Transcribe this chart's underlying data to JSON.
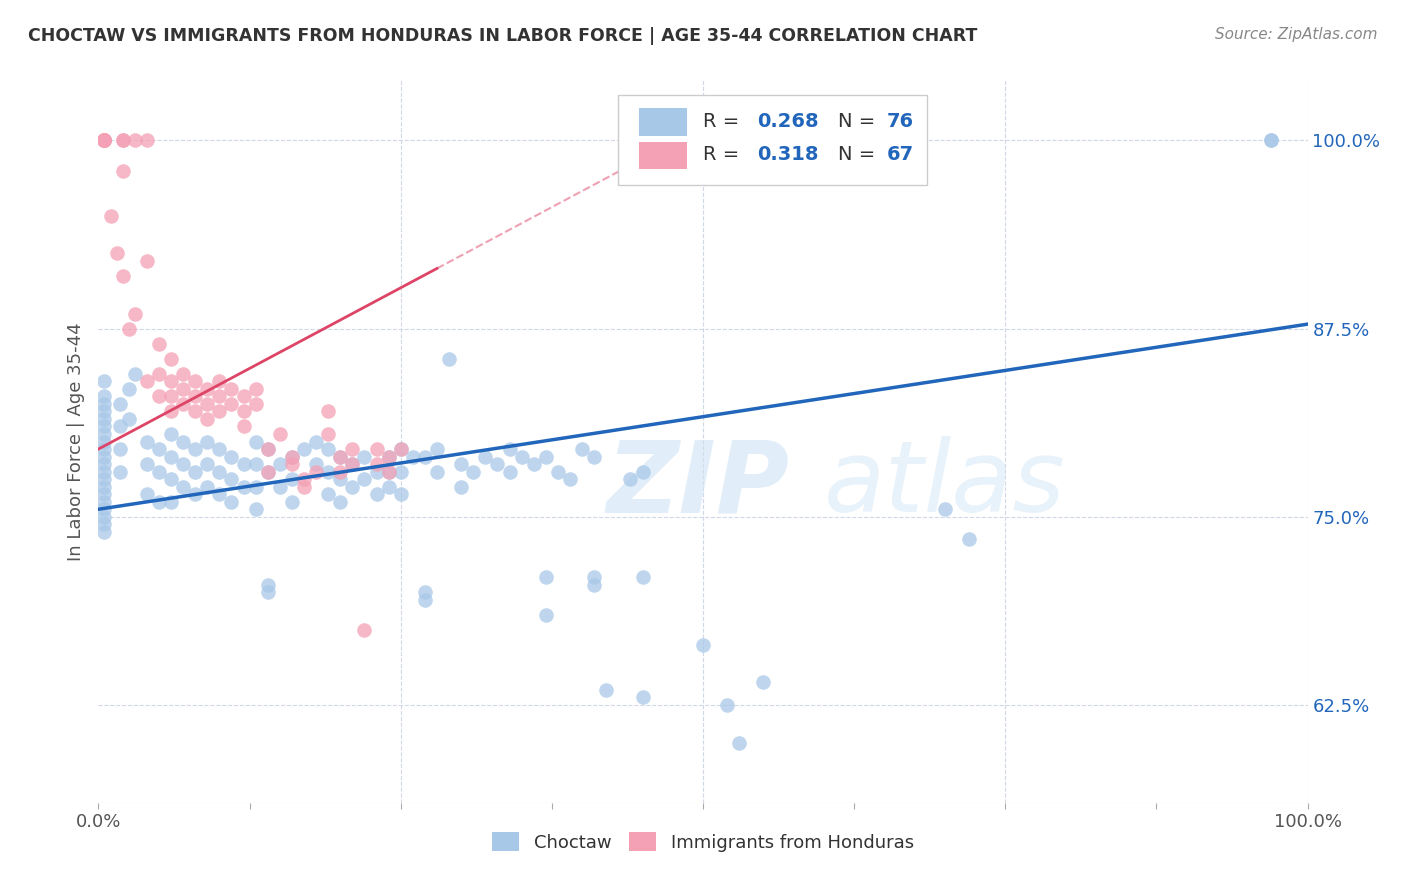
{
  "title": "CHOCTAW VS IMMIGRANTS FROM HONDURAS IN LABOR FORCE | AGE 35-44 CORRELATION CHART",
  "source": "Source: ZipAtlas.com",
  "ylabel": "In Labor Force | Age 35-44",
  "yticks": [
    62.5,
    75.0,
    87.5,
    100.0
  ],
  "ytick_labels": [
    "62.5%",
    "75.0%",
    "87.5%",
    "100.0%"
  ],
  "xmin": 0.0,
  "xmax": 1.0,
  "ymin": 56.0,
  "ymax": 104.0,
  "blue_color": "#a8c8e8",
  "pink_color": "#f4a0b5",
  "blue_line_color": "#2266bb",
  "pink_line_color": "#dd4466",
  "watermark_zip": "ZIP",
  "watermark_atlas": "atlas",
  "blue_trend_x0": 0.0,
  "blue_trend_y0": 75.5,
  "blue_trend_x1": 1.0,
  "blue_trend_y1": 87.8,
  "pink_trend_x0": 0.0,
  "pink_trend_y0": 79.5,
  "pink_trend_x1": 0.28,
  "pink_trend_y1": 91.5,
  "blue_scatter": [
    [
      0.005,
      84.0
    ],
    [
      0.005,
      83.0
    ],
    [
      0.005,
      82.5
    ],
    [
      0.005,
      82.0
    ],
    [
      0.005,
      81.5
    ],
    [
      0.005,
      81.0
    ],
    [
      0.005,
      80.5
    ],
    [
      0.005,
      80.0
    ],
    [
      0.005,
      79.5
    ],
    [
      0.005,
      79.0
    ],
    [
      0.005,
      78.5
    ],
    [
      0.005,
      78.0
    ],
    [
      0.005,
      77.5
    ],
    [
      0.005,
      77.0
    ],
    [
      0.005,
      76.5
    ],
    [
      0.005,
      76.0
    ],
    [
      0.005,
      75.5
    ],
    [
      0.005,
      75.0
    ],
    [
      0.005,
      74.5
    ],
    [
      0.005,
      74.0
    ],
    [
      0.018,
      82.5
    ],
    [
      0.018,
      81.0
    ],
    [
      0.018,
      79.5
    ],
    [
      0.018,
      78.0
    ],
    [
      0.025,
      83.5
    ],
    [
      0.025,
      81.5
    ],
    [
      0.03,
      84.5
    ],
    [
      0.04,
      80.0
    ],
    [
      0.04,
      78.5
    ],
    [
      0.04,
      76.5
    ],
    [
      0.05,
      79.5
    ],
    [
      0.05,
      78.0
    ],
    [
      0.05,
      76.0
    ],
    [
      0.06,
      80.5
    ],
    [
      0.06,
      79.0
    ],
    [
      0.06,
      77.5
    ],
    [
      0.06,
      76.0
    ],
    [
      0.07,
      80.0
    ],
    [
      0.07,
      78.5
    ],
    [
      0.07,
      77.0
    ],
    [
      0.08,
      79.5
    ],
    [
      0.08,
      78.0
    ],
    [
      0.08,
      76.5
    ],
    [
      0.09,
      80.0
    ],
    [
      0.09,
      78.5
    ],
    [
      0.09,
      77.0
    ],
    [
      0.1,
      79.5
    ],
    [
      0.1,
      78.0
    ],
    [
      0.1,
      76.5
    ],
    [
      0.11,
      79.0
    ],
    [
      0.11,
      77.5
    ],
    [
      0.11,
      76.0
    ],
    [
      0.12,
      78.5
    ],
    [
      0.12,
      77.0
    ],
    [
      0.13,
      80.0
    ],
    [
      0.13,
      78.5
    ],
    [
      0.13,
      77.0
    ],
    [
      0.13,
      75.5
    ],
    [
      0.14,
      79.5
    ],
    [
      0.14,
      78.0
    ],
    [
      0.14,
      70.5
    ],
    [
      0.14,
      70.0
    ],
    [
      0.15,
      78.5
    ],
    [
      0.15,
      77.0
    ],
    [
      0.16,
      79.0
    ],
    [
      0.16,
      77.5
    ],
    [
      0.16,
      76.0
    ],
    [
      0.17,
      79.5
    ],
    [
      0.18,
      80.0
    ],
    [
      0.18,
      78.5
    ],
    [
      0.19,
      79.5
    ],
    [
      0.19,
      78.0
    ],
    [
      0.19,
      76.5
    ],
    [
      0.2,
      79.0
    ],
    [
      0.2,
      77.5
    ],
    [
      0.2,
      76.0
    ],
    [
      0.21,
      78.5
    ],
    [
      0.21,
      77.0
    ],
    [
      0.22,
      79.0
    ],
    [
      0.22,
      77.5
    ],
    [
      0.23,
      78.0
    ],
    [
      0.23,
      76.5
    ],
    [
      0.24,
      79.0
    ],
    [
      0.24,
      78.0
    ],
    [
      0.24,
      77.0
    ],
    [
      0.25,
      79.5
    ],
    [
      0.25,
      78.0
    ],
    [
      0.25,
      76.5
    ],
    [
      0.26,
      79.0
    ],
    [
      0.27,
      79.0
    ],
    [
      0.27,
      70.0
    ],
    [
      0.27,
      69.5
    ],
    [
      0.28,
      79.5
    ],
    [
      0.28,
      78.0
    ],
    [
      0.29,
      85.5
    ],
    [
      0.3,
      78.5
    ],
    [
      0.3,
      77.0
    ],
    [
      0.31,
      78.0
    ],
    [
      0.32,
      79.0
    ],
    [
      0.33,
      78.5
    ],
    [
      0.34,
      79.5
    ],
    [
      0.34,
      78.0
    ],
    [
      0.35,
      79.0
    ],
    [
      0.36,
      78.5
    ],
    [
      0.37,
      79.0
    ],
    [
      0.37,
      71.0
    ],
    [
      0.37,
      68.5
    ],
    [
      0.38,
      78.0
    ],
    [
      0.39,
      77.5
    ],
    [
      0.4,
      79.5
    ],
    [
      0.41,
      79.0
    ],
    [
      0.41,
      71.0
    ],
    [
      0.41,
      70.5
    ],
    [
      0.42,
      63.5
    ],
    [
      0.44,
      77.5
    ],
    [
      0.45,
      78.0
    ],
    [
      0.45,
      71.0
    ],
    [
      0.45,
      63.0
    ],
    [
      0.5,
      66.5
    ],
    [
      0.52,
      62.5
    ],
    [
      0.53,
      60.0
    ],
    [
      0.55,
      64.0
    ],
    [
      0.7,
      75.5
    ],
    [
      0.72,
      73.5
    ],
    [
      0.97,
      100.0
    ],
    [
      0.97,
      100.0
    ]
  ],
  "pink_scatter": [
    [
      0.005,
      100.0
    ],
    [
      0.005,
      100.0
    ],
    [
      0.005,
      100.0
    ],
    [
      0.005,
      100.0
    ],
    [
      0.005,
      100.0
    ],
    [
      0.005,
      100.0
    ],
    [
      0.005,
      100.0
    ],
    [
      0.005,
      100.0
    ],
    [
      0.01,
      95.0
    ],
    [
      0.015,
      92.5
    ],
    [
      0.02,
      100.0
    ],
    [
      0.02,
      100.0
    ],
    [
      0.02,
      98.0
    ],
    [
      0.02,
      91.0
    ],
    [
      0.025,
      87.5
    ],
    [
      0.03,
      100.0
    ],
    [
      0.03,
      88.5
    ],
    [
      0.04,
      100.0
    ],
    [
      0.04,
      92.0
    ],
    [
      0.04,
      84.0
    ],
    [
      0.05,
      86.5
    ],
    [
      0.05,
      84.5
    ],
    [
      0.05,
      83.0
    ],
    [
      0.06,
      85.5
    ],
    [
      0.06,
      84.0
    ],
    [
      0.06,
      83.0
    ],
    [
      0.06,
      82.0
    ],
    [
      0.07,
      84.5
    ],
    [
      0.07,
      83.5
    ],
    [
      0.07,
      82.5
    ],
    [
      0.08,
      84.0
    ],
    [
      0.08,
      83.0
    ],
    [
      0.08,
      82.0
    ],
    [
      0.09,
      83.5
    ],
    [
      0.09,
      82.5
    ],
    [
      0.09,
      81.5
    ],
    [
      0.1,
      84.0
    ],
    [
      0.1,
      83.0
    ],
    [
      0.1,
      82.0
    ],
    [
      0.11,
      83.5
    ],
    [
      0.11,
      82.5
    ],
    [
      0.12,
      83.0
    ],
    [
      0.12,
      82.0
    ],
    [
      0.12,
      81.0
    ],
    [
      0.13,
      83.5
    ],
    [
      0.13,
      82.5
    ],
    [
      0.14,
      79.5
    ],
    [
      0.14,
      78.0
    ],
    [
      0.15,
      80.5
    ],
    [
      0.16,
      79.0
    ],
    [
      0.16,
      78.5
    ],
    [
      0.17,
      77.5
    ],
    [
      0.17,
      77.0
    ],
    [
      0.18,
      78.0
    ],
    [
      0.19,
      82.0
    ],
    [
      0.19,
      80.5
    ],
    [
      0.2,
      79.0
    ],
    [
      0.2,
      78.0
    ],
    [
      0.21,
      79.5
    ],
    [
      0.21,
      78.5
    ],
    [
      0.22,
      67.5
    ],
    [
      0.23,
      79.5
    ],
    [
      0.23,
      78.5
    ],
    [
      0.24,
      79.0
    ],
    [
      0.24,
      78.0
    ],
    [
      0.25,
      79.5
    ]
  ],
  "grid_color": "#d0d8e8",
  "grid_style": "--"
}
